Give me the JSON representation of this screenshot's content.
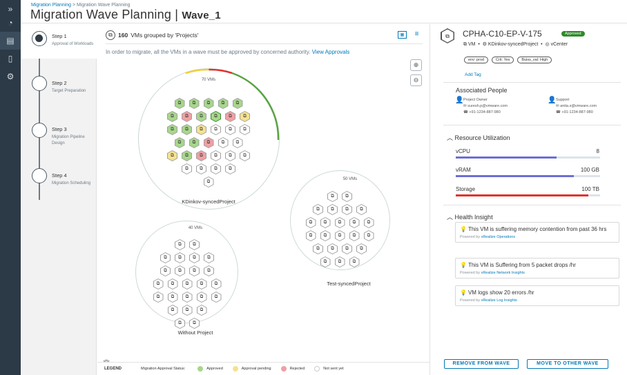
{
  "rail": {
    "items": [
      "expand-icon",
      "dashboard-icon",
      "list-icon",
      "document-icon",
      "settings-icon"
    ],
    "active_index": 2
  },
  "header": {
    "breadcrumb": {
      "parent": "Migration Planning",
      "separator": ">",
      "current": "Migration Wave Planning"
    },
    "title": "Migration Wave Planning |",
    "wave": "Wave_1"
  },
  "steps": [
    {
      "name": "Step 1",
      "desc": "Approval of Workloads",
      "active": true
    },
    {
      "name": "Step 2",
      "desc": "Target Preparation",
      "active": false
    },
    {
      "name": "Step 3",
      "desc": "Migration Pipeline Design",
      "active": false
    },
    {
      "name": "Step 4",
      "desc": "Migration Scheduling",
      "active": false
    }
  ],
  "main": {
    "vm_count": "160",
    "group_text": "VMs grouped by 'Projects'",
    "notice": "In order to migrate, all the VMs in a wave must be approved by concerned authority.",
    "notice_link": "View Approvals",
    "zoom_in": "⊕",
    "zoom_out": "⊖",
    "collapse": "︽"
  },
  "clusters": [
    {
      "name": "KDinkov-syncedProject",
      "count": "70 VMs",
      "rows": [
        [
          "approved",
          "approved",
          "approved",
          "approved",
          "approved"
        ],
        [
          "approved",
          "rejected",
          "approved",
          "sel",
          "rejected",
          "pending"
        ],
        [
          "approved",
          "approved",
          "pending",
          "none",
          "none",
          "none"
        ],
        [
          "approved",
          "approved",
          "rejected",
          "none",
          "none"
        ],
        [
          "pending",
          "approved",
          "rejected",
          "none",
          "none",
          "none"
        ],
        [
          "none",
          "none",
          "none",
          "none"
        ],
        [
          "none"
        ]
      ]
    },
    {
      "name": "Test-syncedProject",
      "count": "50 VMs",
      "rows": [
        [
          "none",
          "none"
        ],
        [
          "none",
          "none",
          "none",
          "none"
        ],
        [
          "none",
          "none",
          "none",
          "none",
          "none"
        ],
        [
          "none",
          "none",
          "none",
          "none",
          "none"
        ],
        [
          "none",
          "none",
          "none",
          "none"
        ],
        [
          "none",
          "none",
          "none"
        ]
      ]
    },
    {
      "name": "Without Project",
      "count": "40 VMs",
      "rows": [
        [
          "none",
          "none"
        ],
        [
          "none",
          "none",
          "none",
          "none"
        ],
        [
          "none",
          "none",
          "none",
          "none"
        ],
        [
          "none",
          "none",
          "none",
          "none",
          "none"
        ],
        [
          "none",
          "none",
          "none",
          "none",
          "none"
        ],
        [
          "none",
          "none",
          "none"
        ],
        [
          "none",
          "none"
        ]
      ]
    }
  ],
  "legend": {
    "title": "LEGEND",
    "status_label": "Migration Approval Status:",
    "items": [
      {
        "label": "Approved",
        "color": "#a8d68c"
      },
      {
        "label": "Approval pending",
        "color": "#f5e290"
      },
      {
        "label": "Rejected",
        "color": "#f0a0a4"
      },
      {
        "label": "Not sent yet",
        "color": "#ffffff"
      }
    ]
  },
  "vm": {
    "name": "CPHA-C10-EP-V-175",
    "status": "Approved",
    "type": "VM",
    "project": "KDinkov-syncedProject",
    "source": "vCenter",
    "tags": [
      "env: prod",
      "Crit: Yes",
      "Buiss_val: High"
    ],
    "add_tag": "Add Tag"
  },
  "people": {
    "title": "Associated People",
    "owner": {
      "role": "Project Owner",
      "email": "suresh.p@vmware.com",
      "phone": "+91-1234-887-980"
    },
    "support": {
      "role": "Support",
      "email": "anita.s@vmware.com",
      "phone": "+91-1234-887-980"
    }
  },
  "resources": {
    "title": "Resource Utilization",
    "items": [
      {
        "label": "vCPU",
        "value": "8",
        "fill": 0.7,
        "color": "#6c6ed6"
      },
      {
        "label": "vRAM",
        "value": "100 GB",
        "fill": 0.82,
        "color": "#6c6ed6"
      },
      {
        "label": "Storage",
        "value": "100 TB",
        "fill": 0.92,
        "color": "#e0322d"
      }
    ]
  },
  "health": {
    "title": "Health Insight",
    "items": [
      {
        "text": "This VM is suffering memory contention from past 36 hrs",
        "powered": "Powered by",
        "tool": "vRealize Operations"
      },
      {
        "text": "This VM is Suffering from 5 packet drops /hr",
        "powered": "Powered by",
        "tool": "vRealize Network Insights"
      },
      {
        "text": "VM logs show 20 errors /hr",
        "powered": "Powered by",
        "tool": "vRealize Log Insights"
      }
    ]
  },
  "actions": {
    "remove": "REMOVE FROM WAVE",
    "move": "MOVE TO OTHER WAVE"
  }
}
